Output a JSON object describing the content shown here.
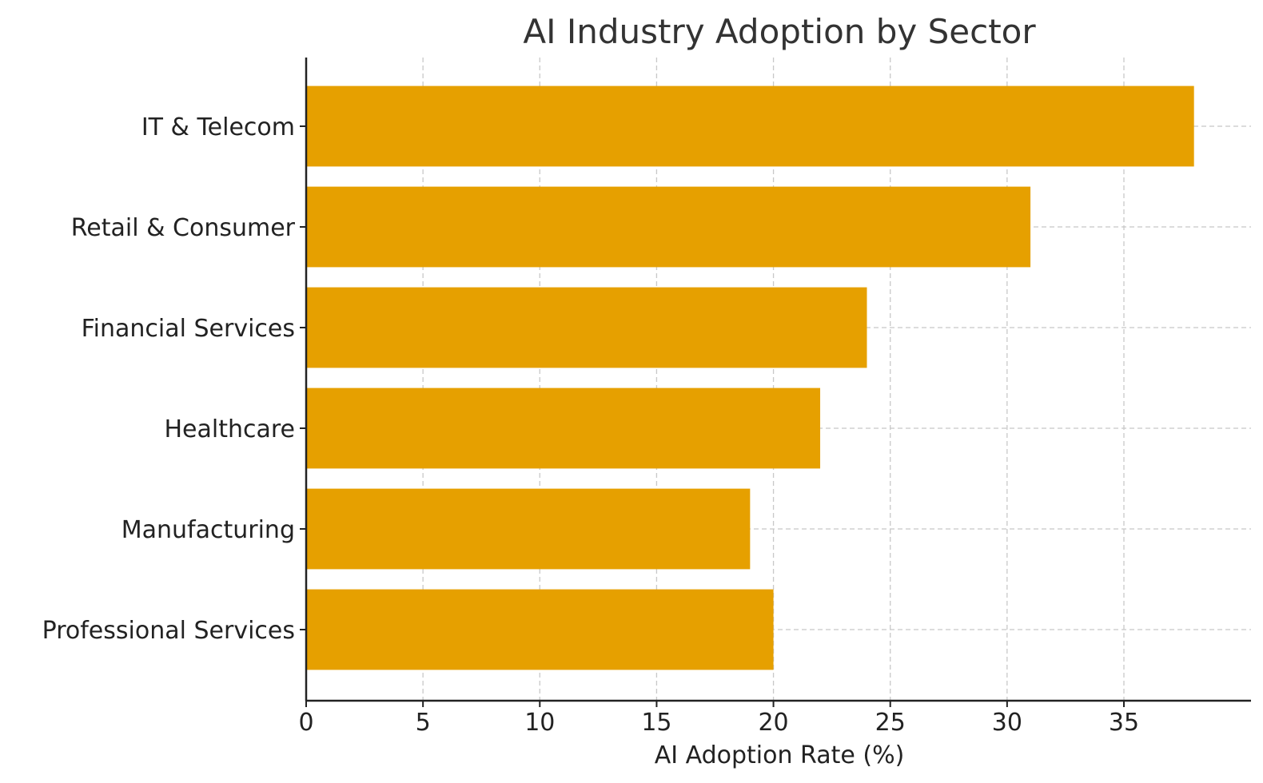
{
  "chart_data": {
    "type": "bar",
    "orientation": "horizontal",
    "title": "AI Industry Adoption by Sector",
    "xlabel": "AI Adoption Rate (%)",
    "ylabel": "",
    "categories": [
      "IT & Telecom",
      "Retail & Consumer",
      "Financial Services",
      "Healthcare",
      "Manufacturing",
      "Professional Services"
    ],
    "values": [
      38,
      31,
      24,
      22,
      19,
      20
    ],
    "xlim": [
      0,
      40
    ],
    "xticks": [
      0,
      5,
      10,
      15,
      20,
      25,
      30,
      35
    ],
    "grid": true,
    "legend": "none",
    "colors": {
      "bar": "#e6a000",
      "grid": "#c8c8c8",
      "axis": "#222222",
      "title": "#333333"
    }
  }
}
